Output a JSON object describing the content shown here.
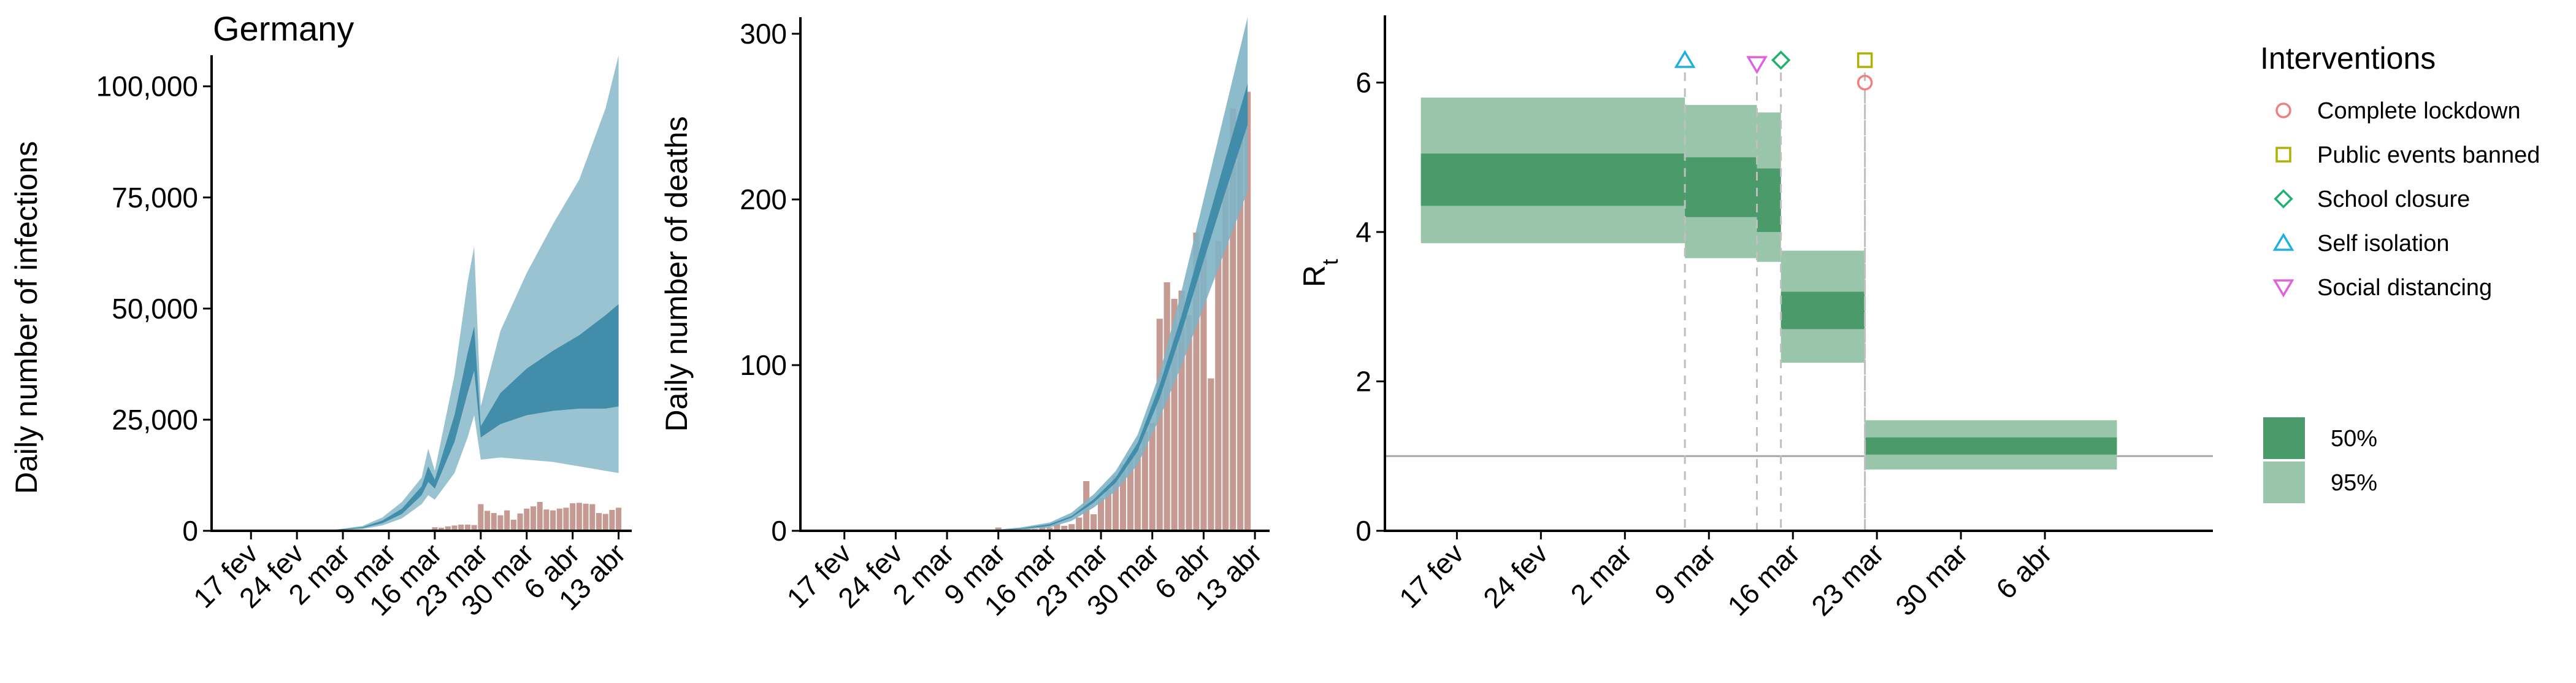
{
  "figure": {
    "country": "Germany",
    "colors": {
      "infections_ci95": "#8fbdcc",
      "infections_ci50": "#3d8aa8",
      "deaths_ci95": "#80b4c7",
      "deaths_ci50": "#3d8aa8",
      "observed_bars": "#c59a92",
      "rt_ci95": "#99c5ab",
      "rt_ci50": "#4a9a6a",
      "reference_line": "#a6a6a6",
      "vline": "#bfbfbf",
      "complete_lockdown": "#f08080",
      "public_events_banned": "#b0b000",
      "school_closure": "#20b070",
      "self_isolation": "#20b0e0",
      "social_distancing": "#e060e0"
    }
  },
  "chart_data": [
    {
      "type": "area",
      "title": "Germany",
      "ylabel": "Daily number of infections",
      "xlabel": "",
      "ylim": [
        0,
        107000
      ],
      "yticks": [
        0,
        25000,
        50000,
        75000,
        100000
      ],
      "ytick_labels": [
        "0",
        "25,000",
        "50,000",
        "75,000",
        "100,000"
      ],
      "xticks": [
        "2020-02-17",
        "2020-02-24",
        "2020-03-02",
        "2020-03-09",
        "2020-03-16",
        "2020-03-23",
        "2020-03-30",
        "2020-04-06",
        "2020-04-13"
      ],
      "xtick_labels": [
        "17 fev",
        "24 fev",
        "2 mar",
        "9 mar",
        "16 mar",
        "23 mar",
        "30 mar",
        "6 abr",
        "13 abr"
      ],
      "xlim": [
        "2020-02-11",
        "2020-04-15"
      ],
      "series": [
        {
          "band": "95%",
          "x": [
            "2020-02-26",
            "2020-03-01",
            "2020-03-05",
            "2020-03-08",
            "2020-03-11",
            "2020-03-14",
            "2020-03-15",
            "2020-03-16",
            "2020-03-19",
            "2020-03-21",
            "2020-03-22",
            "2020-03-23",
            "2020-03-26",
            "2020-03-30",
            "2020-04-03",
            "2020-04-07",
            "2020-04-11",
            "2020-04-13"
          ],
          "lower": [
            0,
            100,
            400,
            1200,
            2800,
            6000,
            8000,
            7000,
            13000,
            21000,
            26000,
            16000,
            16500,
            16000,
            15500,
            14500,
            13500,
            13000
          ],
          "upper": [
            0,
            300,
            1100,
            3000,
            6500,
            12000,
            18500,
            13500,
            35000,
            56000,
            64000,
            28000,
            45000,
            58000,
            69000,
            79000,
            95000,
            107000
          ]
        },
        {
          "band": "50%",
          "x": [
            "2020-02-26",
            "2020-03-01",
            "2020-03-05",
            "2020-03-08",
            "2020-03-11",
            "2020-03-14",
            "2020-03-15",
            "2020-03-16",
            "2020-03-19",
            "2020-03-21",
            "2020-03-22",
            "2020-03-23",
            "2020-03-26",
            "2020-03-30",
            "2020-04-03",
            "2020-04-07",
            "2020-04-11",
            "2020-04-13"
          ],
          "lower": [
            0,
            150,
            600,
            1700,
            3800,
            8000,
            11000,
            9500,
            20000,
            31000,
            36000,
            21000,
            24000,
            26000,
            27000,
            27500,
            27500,
            28000
          ],
          "upper": [
            0,
            220,
            850,
            2300,
            5000,
            10000,
            14500,
            11500,
            26000,
            40000,
            46000,
            23500,
            31000,
            36500,
            40500,
            44000,
            48500,
            51000
          ]
        }
      ],
      "observed": {
        "x": [
          "2020-03-16",
          "2020-03-17",
          "2020-03-18",
          "2020-03-19",
          "2020-03-20",
          "2020-03-21",
          "2020-03-22",
          "2020-03-23",
          "2020-03-24",
          "2020-03-25",
          "2020-03-26",
          "2020-03-27",
          "2020-03-28",
          "2020-03-29",
          "2020-03-30",
          "2020-03-31",
          "2020-04-01",
          "2020-04-02",
          "2020-04-03",
          "2020-04-04",
          "2020-04-05",
          "2020-04-06",
          "2020-04-07",
          "2020-04-08",
          "2020-04-09",
          "2020-04-10",
          "2020-04-11",
          "2020-04-12",
          "2020-04-13"
        ],
        "values": [
          800,
          700,
          1000,
          1200,
          1400,
          1400,
          1300,
          6000,
          4500,
          4000,
          3500,
          4600,
          2500,
          3900,
          5000,
          5500,
          6500,
          4800,
          4600,
          5000,
          5200,
          6200,
          6300,
          6100,
          6000,
          4000,
          3800,
          4700,
          5200
        ]
      }
    },
    {
      "type": "area",
      "title": "",
      "ylabel": "Daily number of deaths",
      "xlabel": "",
      "ylim": [
        0,
        310
      ],
      "yticks": [
        0,
        100,
        200,
        300
      ],
      "ytick_labels": [
        "0",
        "100",
        "200",
        "300"
      ],
      "xticks": [
        "2020-02-17",
        "2020-02-24",
        "2020-03-02",
        "2020-03-09",
        "2020-03-16",
        "2020-03-23",
        "2020-03-30",
        "2020-04-06",
        "2020-04-13"
      ],
      "xtick_labels": [
        "17 fev",
        "24 fev",
        "2 mar",
        "9 mar",
        "16 mar",
        "23 mar",
        "30 mar",
        "6 abr",
        "13 abr"
      ],
      "xlim": [
        "2020-02-11",
        "2020-04-15"
      ],
      "series": [
        {
          "band": "95%",
          "x": [
            "2020-03-08",
            "2020-03-12",
            "2020-03-16",
            "2020-03-19",
            "2020-03-22",
            "2020-03-25",
            "2020-03-28",
            "2020-03-31",
            "2020-04-03",
            "2020-04-06",
            "2020-04-09",
            "2020-04-12"
          ],
          "lower": [
            0,
            0.5,
            2,
            6,
            14,
            24,
            40,
            68,
            100,
            135,
            170,
            205
          ],
          "upper": [
            0.5,
            2,
            5,
            11,
            22,
            36,
            58,
            95,
            145,
            200,
            255,
            310
          ]
        },
        {
          "band": "50%",
          "x": [
            "2020-03-08",
            "2020-03-12",
            "2020-03-16",
            "2020-03-19",
            "2020-03-22",
            "2020-03-25",
            "2020-03-28",
            "2020-03-31",
            "2020-04-03",
            "2020-04-06",
            "2020-04-09",
            "2020-04-12"
          ],
          "lower": [
            0.2,
            1,
            3,
            8,
            17,
            29,
            48,
            80,
            120,
            163,
            205,
            245
          ],
          "upper": [
            0.3,
            1.5,
            4,
            9,
            19,
            32,
            53,
            88,
            130,
            178,
            225,
            270
          ]
        }
      ],
      "observed": {
        "x": [
          "2020-03-09",
          "2020-03-10",
          "2020-03-11",
          "2020-03-12",
          "2020-03-13",
          "2020-03-14",
          "2020-03-15",
          "2020-03-16",
          "2020-03-17",
          "2020-03-18",
          "2020-03-19",
          "2020-03-20",
          "2020-03-21",
          "2020-03-22",
          "2020-03-23",
          "2020-03-24",
          "2020-03-25",
          "2020-03-26",
          "2020-03-27",
          "2020-03-28",
          "2020-03-29",
          "2020-03-30",
          "2020-03-31",
          "2020-04-01",
          "2020-04-02",
          "2020-04-03",
          "2020-04-04",
          "2020-04-05",
          "2020-04-06",
          "2020-04-07",
          "2020-04-08",
          "2020-04-09",
          "2020-04-10",
          "2020-04-11",
          "2020-04-12"
        ],
        "values": [
          2,
          0,
          1,
          0,
          1,
          1,
          3,
          2,
          4,
          3,
          4,
          8,
          30,
          10,
          20,
          25,
          33,
          40,
          45,
          50,
          60,
          65,
          128,
          150,
          140,
          145,
          130,
          180,
          170,
          92,
          175,
          210,
          255,
          240,
          265
        ]
      }
    },
    {
      "type": "area",
      "title": "",
      "ylabel": "R",
      "ylabel_subscript": "t",
      "xlabel": "",
      "ylim": [
        0,
        6.9
      ],
      "yticks": [
        0,
        2,
        4,
        6
      ],
      "ytick_labels": [
        "0",
        "2",
        "4",
        "6"
      ],
      "xticks": [
        "2020-02-17",
        "2020-02-24",
        "2020-03-02",
        "2020-03-09",
        "2020-03-16",
        "2020-03-23",
        "2020-03-30",
        "2020-04-06"
      ],
      "xtick_labels": [
        "17 fev",
        "24 fev",
        "2 mar",
        "9 mar",
        "16 mar",
        "23 mar",
        "30 mar",
        "6 abr"
      ],
      "xlim": [
        "2020-02-11",
        "2020-04-20"
      ],
      "reference_line": 1,
      "segments": [
        {
          "start": "2020-02-14",
          "end": "2020-03-07",
          "ci95": [
            3.85,
            5.8
          ],
          "ci50": [
            4.35,
            5.05
          ]
        },
        {
          "start": "2020-03-07",
          "end": "2020-03-13",
          "ci95": [
            3.65,
            5.7
          ],
          "ci50": [
            4.2,
            5.0
          ]
        },
        {
          "start": "2020-03-13",
          "end": "2020-03-15",
          "ci95": [
            3.6,
            5.6
          ],
          "ci50": [
            4.0,
            4.85
          ]
        },
        {
          "start": "2020-03-15",
          "end": "2020-03-22",
          "ci95": [
            2.25,
            3.75
          ],
          "ci50": [
            2.7,
            3.2
          ]
        },
        {
          "start": "2020-03-22",
          "end": "2020-04-12",
          "ci95": [
            0.82,
            1.48
          ],
          "ci50": [
            1.02,
            1.25
          ]
        }
      ],
      "interventions": [
        {
          "name": "Self isolation",
          "date": "2020-03-07",
          "marker": "triangle-up",
          "y": 6.3
        },
        {
          "name": "Social distancing",
          "date": "2020-03-13",
          "marker": "triangle-down",
          "y": 6.25
        },
        {
          "name": "School closure",
          "date": "2020-03-15",
          "marker": "diamond",
          "y": 6.3
        },
        {
          "name": "Public events banned",
          "date": "2020-03-22",
          "marker": "square",
          "y": 6.3
        },
        {
          "name": "Complete lockdown",
          "date": "2020-03-22",
          "marker": "circle",
          "y": 6.0
        }
      ]
    }
  ],
  "legend": {
    "title": "Interventions",
    "items": [
      {
        "label": "Complete lockdown",
        "marker": "circle",
        "color": "#f08080"
      },
      {
        "label": "Public events banned",
        "marker": "square",
        "color": "#b0b000"
      },
      {
        "label": "School closure",
        "marker": "diamond",
        "color": "#20b070"
      },
      {
        "label": "Self isolation",
        "marker": "triangle-up",
        "color": "#20b0e0"
      },
      {
        "label": "Social distancing",
        "marker": "triangle-down",
        "color": "#e060e0"
      }
    ],
    "ci_items": [
      {
        "label": "50%",
        "color": "#4a9a6a"
      },
      {
        "label": "95%",
        "color": "#99c5ab"
      }
    ]
  }
}
